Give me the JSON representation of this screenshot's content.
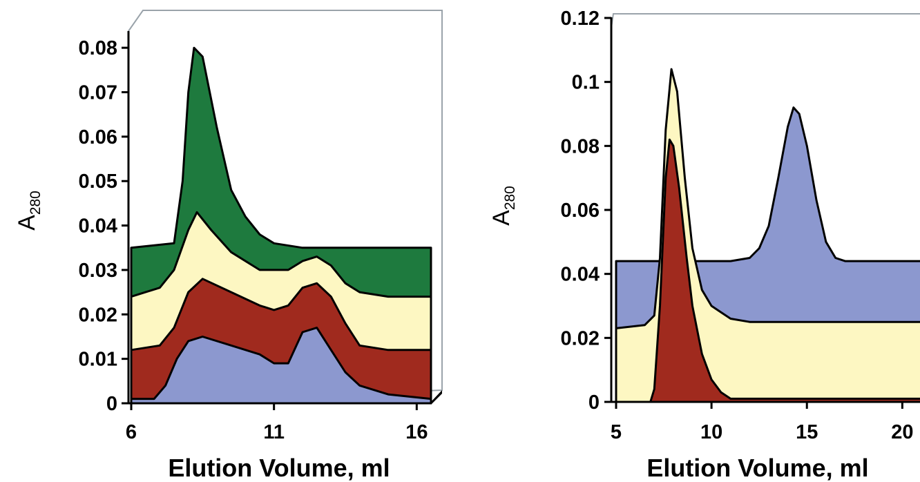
{
  "chart_data": [
    {
      "type": "area",
      "xlabel": "Elution Volume, ml",
      "ylabel": "A",
      "ylabel_sub": "280",
      "xlim": [
        6,
        16.5
      ],
      "ylim": [
        0,
        0.085
      ],
      "x_ticks": [
        "6",
        "11",
        "16"
      ],
      "y_ticks": [
        "0",
        "0.01",
        "0.02",
        "0.03",
        "0.04",
        "0.05",
        "0.06",
        "0.07",
        "0.08"
      ],
      "y_tick_values": [
        0,
        0.01,
        0.02,
        0.03,
        0.04,
        0.05,
        0.06,
        0.07,
        0.08
      ],
      "x_tick_values": [
        6,
        11,
        16
      ],
      "stacked_3d": true,
      "series": [
        {
          "color": "#1e7a3e",
          "x": [
            6,
            7.5,
            7.8,
            8.0,
            8.2,
            8.5,
            9.0,
            9.5,
            10.0,
            10.5,
            11.0,
            12.0,
            13.0,
            14.0,
            15.0,
            16.5
          ],
          "values": [
            0.035,
            0.036,
            0.05,
            0.07,
            0.08,
            0.078,
            0.062,
            0.048,
            0.042,
            0.038,
            0.036,
            0.035,
            0.035,
            0.035,
            0.035,
            0.035
          ]
        },
        {
          "color": "#fdf7c2",
          "x": [
            6,
            6.5,
            7.0,
            7.5,
            8.0,
            8.3,
            8.8,
            9.5,
            10.5,
            11.5,
            12.0,
            12.5,
            13.0,
            13.5,
            14.0,
            15.0,
            16.5
          ],
          "values": [
            0.024,
            0.025,
            0.026,
            0.03,
            0.039,
            0.043,
            0.039,
            0.034,
            0.03,
            0.03,
            0.032,
            0.033,
            0.031,
            0.027,
            0.025,
            0.024,
            0.024
          ]
        },
        {
          "color": "#a02a1e",
          "x": [
            6,
            7.0,
            7.5,
            8.0,
            8.5,
            9.5,
            10.5,
            11.0,
            11.5,
            12.0,
            12.5,
            13.0,
            13.5,
            14.0,
            15.0,
            16.5
          ],
          "values": [
            0.012,
            0.013,
            0.017,
            0.025,
            0.028,
            0.025,
            0.022,
            0.021,
            0.022,
            0.026,
            0.027,
            0.024,
            0.018,
            0.013,
            0.012,
            0.012
          ]
        },
        {
          "color": "#8c98cf",
          "x": [
            6,
            6.8,
            7.2,
            7.6,
            8.0,
            8.5,
            9.5,
            10.5,
            11.0,
            11.5,
            12.0,
            12.5,
            13.0,
            13.5,
            14.0,
            15.0,
            16.5
          ],
          "values": [
            0.001,
            0.001,
            0.004,
            0.01,
            0.014,
            0.015,
            0.013,
            0.011,
            0.009,
            0.009,
            0.016,
            0.017,
            0.012,
            0.007,
            0.004,
            0.002,
            0.001
          ]
        }
      ]
    },
    {
      "type": "area",
      "xlabel": "Elution Volume, ml",
      "ylabel": "A",
      "ylabel_sub": "280",
      "xlim": [
        5,
        21
      ],
      "ylim": [
        0,
        0.12
      ],
      "x_ticks": [
        "5",
        "10",
        "15",
        "20"
      ],
      "x_tick_values": [
        5,
        10,
        15,
        20
      ],
      "y_ticks": [
        "0",
        "0.02",
        "0.04",
        "0.06",
        "0.08",
        "0.1",
        "0.12"
      ],
      "y_tick_values": [
        0,
        0.02,
        0.04,
        0.06,
        0.08,
        0.1,
        0.12
      ],
      "series": [
        {
          "color": "#8c98cf",
          "x": [
            5,
            11,
            12.0,
            12.5,
            13.0,
            13.5,
            14.0,
            14.3,
            14.6,
            15.0,
            15.5,
            16.0,
            16.5,
            17.0,
            21
          ],
          "values": [
            0.044,
            0.044,
            0.045,
            0.048,
            0.055,
            0.07,
            0.086,
            0.092,
            0.09,
            0.08,
            0.063,
            0.05,
            0.045,
            0.044,
            0.044
          ]
        },
        {
          "color": "#fdf7c2",
          "x": [
            5,
            6.5,
            7.0,
            7.3,
            7.6,
            7.9,
            8.2,
            8.6,
            9.0,
            9.5,
            10.0,
            10.5,
            11.0,
            12.0,
            21
          ],
          "values": [
            0.023,
            0.024,
            0.027,
            0.045,
            0.085,
            0.104,
            0.097,
            0.07,
            0.048,
            0.035,
            0.03,
            0.028,
            0.026,
            0.025,
            0.025
          ]
        },
        {
          "color": "#a02a1e",
          "x": [
            5,
            6.8,
            7.0,
            7.3,
            7.6,
            7.8,
            8.0,
            8.3,
            8.7,
            9.0,
            9.5,
            10.0,
            10.5,
            11.0,
            21
          ],
          "values": [
            0.0,
            0.0,
            0.004,
            0.03,
            0.07,
            0.082,
            0.08,
            0.067,
            0.045,
            0.03,
            0.015,
            0.007,
            0.003,
            0.001,
            0.001
          ]
        }
      ]
    }
  ]
}
